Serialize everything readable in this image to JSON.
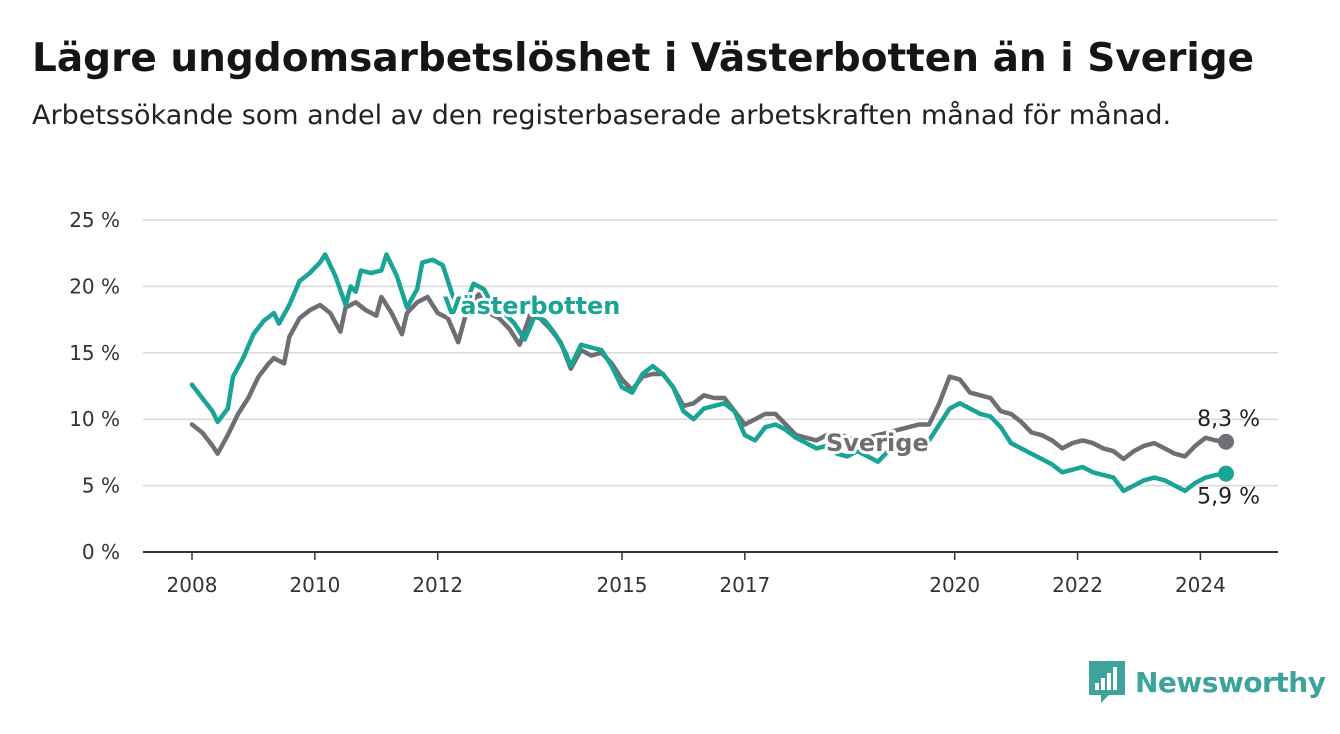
{
  "header": {
    "title": "Lägre ungdomsarbetslöshet i Västerbotten än i Sverige",
    "subtitle": "Arbetssökande som andel av den registerbaserade arbetskraften månad för månad."
  },
  "brand": {
    "name": "Newsworthy",
    "icon": "bar-chart-logo-icon",
    "color": "#3ea39a"
  },
  "chart_data": {
    "type": "line",
    "title": "Lägre ungdomsarbetslöshet i Västerbotten än i Sverige",
    "xlabel": "",
    "ylabel": "",
    "ylim": [
      0,
      25
    ],
    "yticks": [
      {
        "value": 0,
        "label": "0 %"
      },
      {
        "value": 5,
        "label": "5 %"
      },
      {
        "value": 10,
        "label": "10 %"
      },
      {
        "value": 15,
        "label": "15 %"
      },
      {
        "value": 20,
        "label": "20 %"
      },
      {
        "value": 25,
        "label": "25 %"
      }
    ],
    "xlim": [
      "2008-01",
      "2024-11"
    ],
    "xticks": [
      {
        "value": "2008-01",
        "label": "2008"
      },
      {
        "value": "2010-01",
        "label": "2010"
      },
      {
        "value": "2012-01",
        "label": "2012"
      },
      {
        "value": "2015-01",
        "label": "2015"
      },
      {
        "value": "2017-01",
        "label": "2017"
      },
      {
        "value": "2020-06",
        "label": "2020"
      },
      {
        "value": "2022-06",
        "label": "2022"
      },
      {
        "value": "2024-06",
        "label": "2024"
      }
    ],
    "grid": true,
    "series": [
      {
        "name": "Sverige",
        "color": "#6e6e73",
        "end_label": "8,3 %",
        "points": [
          [
            "2008-01",
            9.6
          ],
          [
            "2008-03",
            9.0
          ],
          [
            "2008-05",
            8.0
          ],
          [
            "2008-06",
            7.4
          ],
          [
            "2008-08",
            8.8
          ],
          [
            "2008-10",
            10.4
          ],
          [
            "2008-12",
            11.6
          ],
          [
            "2009-02",
            13.2
          ],
          [
            "2009-04",
            14.2
          ],
          [
            "2009-05",
            14.6
          ],
          [
            "2009-07",
            14.2
          ],
          [
            "2009-08",
            16.2
          ],
          [
            "2009-10",
            17.6
          ],
          [
            "2009-12",
            18.2
          ],
          [
            "2010-02",
            18.6
          ],
          [
            "2010-04",
            18.0
          ],
          [
            "2010-06",
            16.6
          ],
          [
            "2010-07",
            18.4
          ],
          [
            "2010-09",
            18.8
          ],
          [
            "2010-11",
            18.2
          ],
          [
            "2011-01",
            17.8
          ],
          [
            "2011-02",
            19.2
          ],
          [
            "2011-04",
            18.0
          ],
          [
            "2011-06",
            16.4
          ],
          [
            "2011-07",
            18.0
          ],
          [
            "2011-09",
            18.8
          ],
          [
            "2011-11",
            19.2
          ],
          [
            "2012-01",
            18.0
          ],
          [
            "2012-03",
            17.6
          ],
          [
            "2012-05",
            15.8
          ],
          [
            "2012-07",
            18.6
          ],
          [
            "2012-09",
            19.4
          ],
          [
            "2012-11",
            18.0
          ],
          [
            "2013-01",
            17.6
          ],
          [
            "2013-03",
            16.8
          ],
          [
            "2013-05",
            15.6
          ],
          [
            "2013-07",
            17.8
          ],
          [
            "2013-09",
            17.6
          ],
          [
            "2013-11",
            16.8
          ],
          [
            "2014-01",
            15.8
          ],
          [
            "2014-03",
            13.8
          ],
          [
            "2014-05",
            15.2
          ],
          [
            "2014-07",
            14.8
          ],
          [
            "2014-09",
            15.0
          ],
          [
            "2014-11",
            14.2
          ],
          [
            "2015-01",
            13.0
          ],
          [
            "2015-03",
            12.2
          ],
          [
            "2015-05",
            13.2
          ],
          [
            "2015-07",
            13.4
          ],
          [
            "2015-09",
            13.4
          ],
          [
            "2015-11",
            12.4
          ],
          [
            "2016-01",
            11.0
          ],
          [
            "2016-03",
            11.2
          ],
          [
            "2016-05",
            11.8
          ],
          [
            "2016-07",
            11.6
          ],
          [
            "2016-09",
            11.6
          ],
          [
            "2016-11",
            10.6
          ],
          [
            "2017-01",
            9.6
          ],
          [
            "2017-03",
            10.0
          ],
          [
            "2017-05",
            10.4
          ],
          [
            "2017-07",
            10.4
          ],
          [
            "2017-09",
            9.6
          ],
          [
            "2017-11",
            8.8
          ],
          [
            "2018-01",
            8.6
          ],
          [
            "2018-03",
            8.4
          ],
          [
            "2018-05",
            8.8
          ],
          [
            "2018-07",
            9.0
          ],
          [
            "2018-09",
            8.6
          ],
          [
            "2018-11",
            8.4
          ],
          [
            "2019-01",
            8.6
          ],
          [
            "2019-03",
            8.8
          ],
          [
            "2019-05",
            9.0
          ],
          [
            "2019-07",
            9.2
          ],
          [
            "2019-09",
            9.4
          ],
          [
            "2019-11",
            9.6
          ],
          [
            "2020-01",
            9.6
          ],
          [
            "2020-03",
            11.2
          ],
          [
            "2020-05",
            13.2
          ],
          [
            "2020-07",
            13.0
          ],
          [
            "2020-09",
            12.0
          ],
          [
            "2020-11",
            11.8
          ],
          [
            "2021-01",
            11.6
          ],
          [
            "2021-03",
            10.6
          ],
          [
            "2021-05",
            10.4
          ],
          [
            "2021-07",
            9.8
          ],
          [
            "2021-09",
            9.0
          ],
          [
            "2021-11",
            8.8
          ],
          [
            "2022-01",
            8.4
          ],
          [
            "2022-03",
            7.8
          ],
          [
            "2022-05",
            8.2
          ],
          [
            "2022-07",
            8.4
          ],
          [
            "2022-09",
            8.2
          ],
          [
            "2022-11",
            7.8
          ],
          [
            "2023-01",
            7.6
          ],
          [
            "2023-03",
            7.0
          ],
          [
            "2023-05",
            7.6
          ],
          [
            "2023-07",
            8.0
          ],
          [
            "2023-09",
            8.2
          ],
          [
            "2023-11",
            7.8
          ],
          [
            "2024-01",
            7.4
          ],
          [
            "2024-03",
            7.2
          ],
          [
            "2024-05",
            8.0
          ],
          [
            "2024-07",
            8.6
          ],
          [
            "2024-09",
            8.4
          ],
          [
            "2024-11",
            8.3
          ]
        ]
      },
      {
        "name": "Västerbotten",
        "color": "#1aa496",
        "end_label": "5,9 %",
        "points": [
          [
            "2008-01",
            12.6
          ],
          [
            "2008-03",
            11.6
          ],
          [
            "2008-05",
            10.6
          ],
          [
            "2008-06",
            9.8
          ],
          [
            "2008-08",
            10.8
          ],
          [
            "2008-09",
            13.2
          ],
          [
            "2008-11",
            14.6
          ],
          [
            "2009-01",
            16.4
          ],
          [
            "2009-03",
            17.4
          ],
          [
            "2009-05",
            18.0
          ],
          [
            "2009-06",
            17.2
          ],
          [
            "2009-08",
            18.6
          ],
          [
            "2009-10",
            20.4
          ],
          [
            "2009-12",
            21.0
          ],
          [
            "2010-02",
            21.8
          ],
          [
            "2010-03",
            22.4
          ],
          [
            "2010-05",
            20.8
          ],
          [
            "2010-07",
            18.6
          ],
          [
            "2010-08",
            20.0
          ],
          [
            "2010-09",
            19.6
          ],
          [
            "2010-10",
            21.2
          ],
          [
            "2010-12",
            21.0
          ],
          [
            "2011-02",
            21.2
          ],
          [
            "2011-03",
            22.4
          ],
          [
            "2011-05",
            20.8
          ],
          [
            "2011-07",
            18.4
          ],
          [
            "2011-09",
            19.8
          ],
          [
            "2011-10",
            21.8
          ],
          [
            "2011-12",
            22.0
          ],
          [
            "2012-02",
            21.6
          ],
          [
            "2012-04",
            19.2
          ],
          [
            "2012-06",
            18.2
          ],
          [
            "2012-08",
            20.2
          ],
          [
            "2012-10",
            19.8
          ],
          [
            "2012-12",
            18.4
          ],
          [
            "2013-02",
            18.0
          ],
          [
            "2013-04",
            17.2
          ],
          [
            "2013-06",
            16.0
          ],
          [
            "2013-08",
            17.8
          ],
          [
            "2013-10",
            17.4
          ],
          [
            "2013-12",
            16.4
          ],
          [
            "2014-02",
            15.0
          ],
          [
            "2014-03",
            14.0
          ],
          [
            "2014-05",
            15.6
          ],
          [
            "2014-07",
            15.4
          ],
          [
            "2014-09",
            15.2
          ],
          [
            "2014-11",
            14.0
          ],
          [
            "2015-01",
            12.4
          ],
          [
            "2015-03",
            12.0
          ],
          [
            "2015-05",
            13.4
          ],
          [
            "2015-07",
            14.0
          ],
          [
            "2015-09",
            13.4
          ],
          [
            "2015-11",
            12.4
          ],
          [
            "2016-01",
            10.6
          ],
          [
            "2016-03",
            10.0
          ],
          [
            "2016-05",
            10.8
          ],
          [
            "2016-07",
            11.0
          ],
          [
            "2016-09",
            11.2
          ],
          [
            "2016-11",
            10.6
          ],
          [
            "2017-01",
            8.8
          ],
          [
            "2017-03",
            8.4
          ],
          [
            "2017-05",
            9.4
          ],
          [
            "2017-07",
            9.6
          ],
          [
            "2017-09",
            9.2
          ],
          [
            "2017-11",
            8.6
          ],
          [
            "2018-01",
            8.2
          ],
          [
            "2018-03",
            7.8
          ],
          [
            "2018-05",
            8.0
          ],
          [
            "2018-07",
            7.4
          ],
          [
            "2018-09",
            7.2
          ],
          [
            "2018-11",
            7.6
          ],
          [
            "2019-01",
            7.2
          ],
          [
            "2019-03",
            6.8
          ],
          [
            "2019-05",
            7.6
          ],
          [
            "2019-07",
            7.8
          ],
          [
            "2019-09",
            8.0
          ],
          [
            "2019-11",
            8.2
          ],
          [
            "2020-01",
            8.4
          ],
          [
            "2020-03",
            9.6
          ],
          [
            "2020-05",
            10.8
          ],
          [
            "2020-07",
            11.2
          ],
          [
            "2020-09",
            10.8
          ],
          [
            "2020-11",
            10.4
          ],
          [
            "2021-01",
            10.2
          ],
          [
            "2021-03",
            9.4
          ],
          [
            "2021-05",
            8.2
          ],
          [
            "2021-07",
            7.8
          ],
          [
            "2021-09",
            7.4
          ],
          [
            "2021-11",
            7.0
          ],
          [
            "2022-01",
            6.6
          ],
          [
            "2022-03",
            6.0
          ],
          [
            "2022-05",
            6.2
          ],
          [
            "2022-07",
            6.4
          ],
          [
            "2022-09",
            6.0
          ],
          [
            "2022-11",
            5.8
          ],
          [
            "2023-01",
            5.6
          ],
          [
            "2023-03",
            4.6
          ],
          [
            "2023-05",
            5.0
          ],
          [
            "2023-07",
            5.4
          ],
          [
            "2023-09",
            5.6
          ],
          [
            "2023-11",
            5.4
          ],
          [
            "2024-01",
            5.0
          ],
          [
            "2024-03",
            4.6
          ],
          [
            "2024-05",
            5.2
          ],
          [
            "2024-07",
            5.6
          ],
          [
            "2024-09",
            5.8
          ],
          [
            "2024-11",
            5.9
          ]
        ]
      }
    ]
  }
}
